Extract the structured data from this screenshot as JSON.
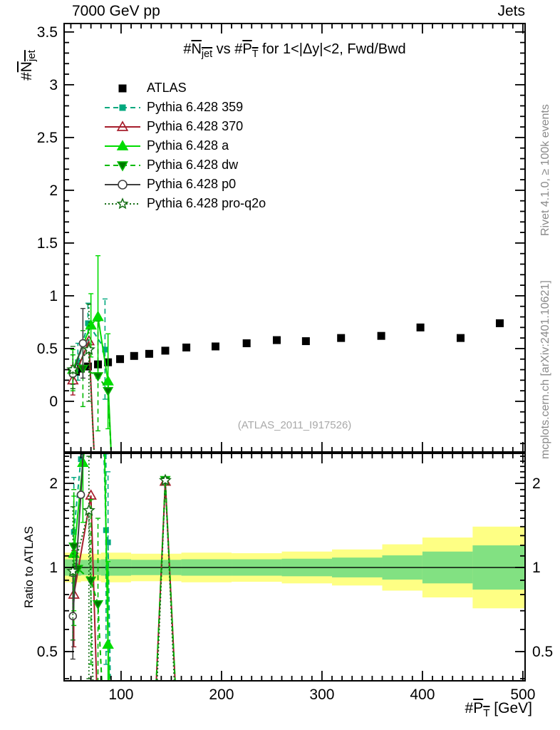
{
  "header": {
    "beam": "7000 GeV pp",
    "group": "Jets"
  },
  "side_notes": {
    "top_right": "Rivet 4.1.0, ≥ 100k events",
    "bottom_right": "mcplots.cern.ch [arXiv:2401.10621]"
  },
  "watermark": "(ATLAS_2011_I917526)",
  "labels": {
    "title_parts": {
      "h1": "#",
      "obs": "N",
      "obs_sub": "jet",
      "mid": " vs #",
      "var": "P",
      "var_sub": "T",
      "tail": " for 1<|Δy|<2, Fwd/Bwd"
    },
    "ylabel_parts": {
      "h": "#",
      "sym": "N",
      "sub": "jet"
    },
    "xlabel_parts": {
      "h": "#",
      "sym": "P",
      "sub": "T",
      "unit": " [GeV]"
    },
    "ratio_ylabel": "Ratio to ATLAS"
  },
  "colors": {
    "atlas": "#000000",
    "py359": "#00a87e",
    "py370": "#a61e2c",
    "pya": "#00dc00",
    "pydw_line": "#00bb00",
    "pydw_fill": "#007700",
    "pyp0": "#3f3f3f",
    "pyq2o": "#166e16",
    "band_yellow": "#feff84",
    "band_green": "#82e182",
    "frame": "#000000",
    "watermark_gray": "#a9a9a9",
    "side_gray": "#8a8a8a"
  },
  "legend": [
    {
      "label": "ATLAS",
      "marker": "square",
      "color": "#000000",
      "fill": "#000000",
      "line": "none"
    },
    {
      "label": "Pythia 6.428 359",
      "marker": "square",
      "color": "#00a87e",
      "fill": "#00a87e",
      "line": "dashed"
    },
    {
      "label": "Pythia 6.428 370",
      "marker": "triangle-open",
      "color": "#a61e2c",
      "fill": "none",
      "line": "solid"
    },
    {
      "label": "Pythia 6.428 a",
      "marker": "triangle",
      "color": "#00dc00",
      "fill": "#00dc00",
      "line": "solid"
    },
    {
      "label": "Pythia 6.428 dw",
      "marker": "triangle-down",
      "color": "#00bb00",
      "fill": "#007700",
      "line": "dashed"
    },
    {
      "label": "Pythia 6.428 p0",
      "marker": "circle-open",
      "color": "#3f3f3f",
      "fill": "#ffffff",
      "line": "solid"
    },
    {
      "label": "Pythia 6.428 pro-q2o",
      "marker": "star-open",
      "color": "#166e16",
      "fill": "#ffffff",
      "line": "dotted"
    }
  ],
  "chart_data": [
    {
      "type": "scatter",
      "title": "#Njet vs #PT for 1<|dy|<2, Fwd/Bwd",
      "xlabel": "#PT [GeV]",
      "ylabel": "#Njet",
      "xlim": [
        43.3,
        502.2
      ],
      "ylim": [
        -0.48,
        3.58
      ],
      "xticks": {
        "majors": [
          100,
          200,
          300,
          400,
          500
        ],
        "labels": [
          "100",
          "200",
          "300",
          "400",
          "500"
        ],
        "minor_min": 50,
        "minor_max": 500,
        "minor_step": 10
      },
      "yticks": {
        "majors": [
          0,
          0.5,
          1,
          1.5,
          2,
          2.5,
          3,
          3.5
        ],
        "labels": [
          "0",
          "0.5",
          "1",
          "1.5",
          "2",
          "2.5",
          "3",
          "3.5"
        ],
        "minor_min": -0.4,
        "minor_max": 3.5,
        "minor_step": 0.1
      },
      "grid": false,
      "legend_position": "upper-left",
      "series": [
        {
          "name": "ATLAS",
          "marker": "square",
          "msize": 11,
          "color": "#000000",
          "fill": "#000000",
          "line": "none",
          "sym_err": 0.02,
          "points": [
            [
              55,
              0.28
            ],
            [
              60,
              0.31
            ],
            [
              67,
              0.33
            ],
            [
              77,
              0.35
            ],
            [
              87,
              0.37
            ],
            [
              99,
              0.4
            ],
            [
              113,
              0.43
            ],
            [
              128,
              0.45
            ],
            [
              144,
              0.48
            ],
            [
              165,
              0.51
            ],
            [
              194,
              0.52
            ],
            [
              225,
              0.55
            ],
            [
              255,
              0.58
            ],
            [
              284,
              0.57
            ],
            [
              319,
              0.6
            ],
            [
              359,
              0.62
            ],
            [
              398,
              0.7
            ],
            [
              438,
              0.6
            ],
            [
              477,
              0.74
            ]
          ]
        },
        {
          "name": "Pythia 6.428 359",
          "marker": "square",
          "msize": 8,
          "color": "#00a87e",
          "fill": "#00a87e",
          "line": "dashed",
          "points": [
            [
              52,
              0.3
            ],
            [
              57,
              0.37
            ],
            [
              67,
              0.74
            ],
            [
              84,
              0.49
            ]
          ],
          "errors": [
            [
              52,
              0.16,
              0.44
            ],
            [
              57,
              0.2,
              0.55
            ],
            [
              67,
              0.55,
              0.93
            ],
            [
              84,
              0.02,
              0.97
            ]
          ],
          "path": [
            [
              52,
              0.3
            ],
            [
              57,
              0.37
            ],
            [
              67,
              0.74
            ],
            [
              84,
              0.49
            ]
          ]
        },
        {
          "name": "Pythia 6.428 370",
          "marker": "triangle-open",
          "msize": 12,
          "color": "#a61e2c",
          "fill": "none",
          "line": "solid",
          "points": [
            [
              52,
              0.2
            ],
            [
              68,
              0.57
            ]
          ],
          "errors": [
            [
              52,
              0.06,
              0.34
            ]
          ],
          "path": [
            [
              52,
              0.2
            ],
            [
              68,
              0.57
            ],
            [
              73,
              -0.46
            ]
          ]
        },
        {
          "name": "Pythia 6.428 a",
          "marker": "triangle",
          "msize": 12,
          "color": "#00dc00",
          "fill": "#00dc00",
          "line": "solid",
          "points": [
            [
              52,
              0.3
            ],
            [
              70,
              0.72
            ],
            [
              77,
              0.8
            ],
            [
              87,
              0.19
            ]
          ],
          "errors": [
            [
              52,
              0.12,
              0.49
            ],
            [
              70,
              0.42,
              1.02
            ],
            [
              77,
              0.22,
              1.38
            ],
            [
              87,
              -0.26,
              0.64
            ]
          ],
          "path": [
            [
              52,
              0.3
            ],
            [
              70,
              0.72
            ],
            [
              77,
              0.8
            ],
            [
              87,
              0.19
            ],
            [
              90,
              -0.46
            ]
          ]
        },
        {
          "name": "Pythia 6.428 dw",
          "marker": "triangle-down",
          "msize": 11,
          "color": "#00bb00",
          "fill": "#007700",
          "line": "dashed",
          "points": [
            [
              52,
              0.27
            ],
            [
              62,
              0.31
            ],
            [
              77,
              0.24
            ],
            [
              87,
              0.1
            ]
          ],
          "errors": [
            [
              52,
              0.1,
              0.44
            ],
            [
              62,
              -0.05,
              0.67
            ],
            [
              77,
              -0.28,
              0.76
            ]
          ],
          "path": [
            [
              52,
              0.27
            ],
            [
              62,
              0.31
            ],
            [
              77,
              0.24
            ],
            [
              87,
              0.1
            ],
            [
              90,
              -0.46
            ]
          ]
        },
        {
          "name": "Pythia 6.428 p0",
          "marker": "circle-open",
          "msize": 10,
          "color": "#3f3f3f",
          "fill": "#ffffff",
          "line": "solid",
          "points": [
            [
              52,
              0.26
            ],
            [
              62,
              0.55
            ]
          ],
          "errors": [
            [
              62,
              0.22,
              0.88
            ]
          ],
          "path": [
            [
              52,
              0.26
            ],
            [
              62,
              0.55
            ]
          ]
        },
        {
          "name": "Pythia 6.428 pro-q2o",
          "marker": "star-open",
          "msize": 13,
          "color": "#166e16",
          "fill": "#ffffff",
          "line": "dotted",
          "points": [
            [
              52,
              0.3
            ],
            [
              68,
              0.49
            ]
          ],
          "errors": [
            [
              52,
              0.12,
              0.52
            ],
            [
              68,
              0.0,
              0.92
            ]
          ],
          "path": [
            [
              52,
              0.3
            ],
            [
              68,
              0.49
            ],
            [
              73,
              -0.46
            ]
          ]
        }
      ]
    },
    {
      "type": "ratio",
      "ylabel": "Ratio to ATLAS",
      "yscale": "log",
      "xlim": [
        43.3,
        502.2
      ],
      "ylim": [
        0.393,
        2.56
      ],
      "reference_line": 1,
      "yticks": {
        "majors": [
          0.5,
          1,
          2
        ],
        "labels": [
          "0.5",
          "1",
          "2"
        ],
        "minors": [
          0.4,
          0.5,
          0.6,
          0.7,
          0.8,
          0.9,
          1.1,
          1.2,
          1.3,
          1.4,
          1.5,
          1.6,
          1.7,
          1.8,
          1.9,
          2.1,
          2.2,
          2.3,
          2.4,
          2.5
        ]
      },
      "bands": {
        "note": "bins: [x_lo, x_hi, yellow_factor, green_factor] around ratio 1",
        "bins": [
          [
            43.3,
            60,
            1.13,
            1.07
          ],
          [
            60,
            80,
            1.12,
            1.065
          ],
          [
            80,
            110,
            1.13,
            1.07
          ],
          [
            110,
            160,
            1.12,
            1.065
          ],
          [
            160,
            210,
            1.13,
            1.07
          ],
          [
            210,
            260,
            1.125,
            1.07
          ],
          [
            260,
            310,
            1.14,
            1.075
          ],
          [
            310,
            360,
            1.16,
            1.085
          ],
          [
            360,
            400,
            1.21,
            1.105
          ],
          [
            400,
            450,
            1.28,
            1.14
          ],
          [
            450,
            502.2,
            1.4,
            1.2
          ]
        ]
      },
      "series": [
        {
          "name": "Pythia 6.428 359",
          "marker": "square",
          "msize": 8,
          "color": "#00a87e",
          "fill": "#00a87e",
          "line": "dashed",
          "points": [
            [
              53,
              1.34
            ],
            [
              60,
              2.44
            ],
            [
              85,
              1.36
            ],
            [
              87,
              1.23
            ]
          ],
          "errors": [
            [
              53,
              0.88,
              2.1
            ],
            [
              85,
              0.45,
              2.55
            ],
            [
              87,
              0.5,
              2.2
            ]
          ],
          "path": [
            [
              53,
              1.34
            ],
            [
              60,
              2.44
            ],
            [
              66,
              3.4
            ],
            [
              82,
              3.4
            ],
            [
              85,
              1.36
            ],
            [
              87,
              1.23
            ],
            [
              90,
              0.27
            ]
          ]
        },
        {
          "name": "Pythia 6.428 370",
          "marker": "triangle-open",
          "msize": 12,
          "color": "#a61e2c",
          "fill": "none",
          "line": "solid",
          "points": [
            [
              53,
              0.8
            ],
            [
              70,
              1.81
            ],
            [
              144,
              2.03
            ]
          ],
          "errors": [
            [
              53,
              0.52,
              1.15
            ]
          ],
          "path": [
            [
              53,
              0.8
            ],
            [
              70,
              1.81
            ],
            [
              77,
              0.27
            ]
          ],
          "path2": [
            [
              133,
              0.27
            ],
            [
              144,
              2.03
            ],
            [
              156,
              0.27
            ]
          ]
        },
        {
          "name": "Pythia 6.428 a",
          "marker": "triangle",
          "msize": 12,
          "color": "#00dc00",
          "fill": "#00dc00",
          "line": "solid",
          "points": [
            [
              53,
              1.12
            ],
            [
              62,
              2.37
            ],
            [
              87,
              0.53
            ]
          ],
          "errors": [
            [
              53,
              0.7,
              1.8
            ],
            [
              62,
              1.45,
              3.2
            ],
            [
              87,
              0.3,
              1.05
            ]
          ],
          "path": [
            [
              53,
              1.12
            ],
            [
              62,
              2.37
            ],
            [
              67,
              3.4
            ]
          ],
          "path2": [
            [
              83,
              3.4
            ],
            [
              87,
              0.53
            ],
            [
              90,
              0.27
            ]
          ]
        },
        {
          "name": "Pythia 6.428 dw",
          "marker": "triangle-down",
          "msize": 11,
          "color": "#00bb00",
          "fill": "#007700",
          "line": "dashed",
          "points": [
            [
              53,
              1.19
            ],
            [
              57,
              0.99
            ],
            [
              70,
              0.9
            ],
            [
              77,
              0.74
            ],
            [
              144,
              2.06
            ]
          ],
          "errors": [
            [
              53,
              0.62,
              1.9
            ],
            [
              70,
              0.45,
              1.75
            ],
            [
              77,
              0.36,
              1.5
            ]
          ],
          "path": [
            [
              53,
              1.19
            ],
            [
              57,
              0.99
            ],
            [
              70,
              0.9
            ],
            [
              77,
              0.74
            ],
            [
              83,
              0.27
            ]
          ],
          "path2": [
            [
              133,
              0.27
            ],
            [
              144,
              2.06
            ],
            [
              156,
              0.27
            ]
          ]
        },
        {
          "name": "Pythia 6.428 p0",
          "marker": "circle-open",
          "msize": 10,
          "color": "#3f3f3f",
          "fill": "#ffffff",
          "line": "solid",
          "points": [
            [
              52,
              0.67
            ],
            [
              60,
              1.82
            ]
          ],
          "errors": [
            [
              52,
              0.47,
              0.93
            ]
          ],
          "path": [
            [
              52,
              0.67
            ],
            [
              60,
              1.82
            ],
            [
              64,
              3.4
            ]
          ]
        },
        {
          "name": "Pythia 6.428 pro-q2o",
          "marker": "star-open",
          "msize": 13,
          "color": "#166e16",
          "fill": "#ffffff",
          "line": "dotted",
          "points": [
            [
              52,
              0.97
            ],
            [
              68,
              1.6
            ],
            [
              144,
              2.05
            ]
          ],
          "errors": [
            [
              52,
              0.55,
              1.65
            ],
            [
              68,
              0.4,
              2.5
            ]
          ],
          "path": [
            [
              52,
              0.97
            ],
            [
              68,
              1.6
            ],
            [
              73,
              0.27
            ]
          ],
          "path2": [
            [
              134,
              0.27
            ],
            [
              144,
              2.05
            ],
            [
              155,
              0.27
            ]
          ]
        }
      ]
    }
  ]
}
